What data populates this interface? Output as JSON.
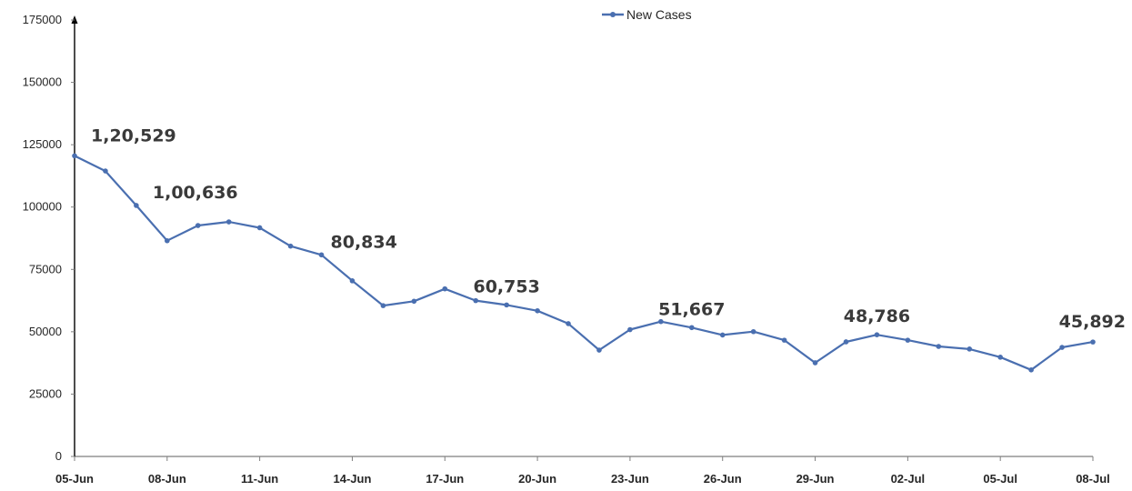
{
  "chart_data": {
    "type": "line",
    "x": [
      "05-Jun",
      "06-Jun",
      "07-Jun",
      "08-Jun",
      "09-Jun",
      "10-Jun",
      "11-Jun",
      "12-Jun",
      "13-Jun",
      "14-Jun",
      "15-Jun",
      "16-Jun",
      "17-Jun",
      "18-Jun",
      "19-Jun",
      "20-Jun",
      "21-Jun",
      "22-Jun",
      "23-Jun",
      "24-Jun",
      "25-Jun",
      "26-Jun",
      "27-Jun",
      "28-Jun",
      "29-Jun",
      "30-Jun",
      "01-Jul",
      "02-Jul",
      "03-Jul",
      "04-Jul",
      "05-Jul",
      "06-Jul",
      "07-Jul",
      "08-Jul"
    ],
    "x_tick_labels": [
      "05-Jun",
      "08-Jun",
      "11-Jun",
      "14-Jun",
      "17-Jun",
      "20-Jun",
      "23-Jun",
      "26-Jun",
      "29-Jun",
      "02-Jul",
      "05-Jul",
      "08-Jul"
    ],
    "series": [
      {
        "name": "New Cases",
        "color": "#4a6fb0",
        "values": [
          120529,
          114460,
          100636,
          86498,
          92596,
          94052,
          91702,
          84332,
          80834,
          70421,
          60471,
          62224,
          67208,
          62480,
          60753,
          58419,
          53256,
          42640,
          50848,
          54069,
          51667,
          48698,
          50040,
          46617,
          37566,
          45951,
          48786,
          46617,
          44111,
          43071,
          39796,
          34703,
          43733,
          45892
        ]
      }
    ],
    "annotations": [
      {
        "index": 0,
        "text": "1,20,529"
      },
      {
        "index": 2,
        "text": "1,00,636"
      },
      {
        "index": 8,
        "text": "80,834"
      },
      {
        "index": 14,
        "text": "60,753"
      },
      {
        "index": 20,
        "text": "51,667"
      },
      {
        "index": 26,
        "text": "48,786"
      },
      {
        "index": 33,
        "text": "45,892"
      }
    ],
    "y_ticks": [
      0,
      25000,
      50000,
      75000,
      100000,
      125000,
      150000,
      175000
    ],
    "ylim": [
      0,
      175000
    ],
    "title": "",
    "xlabel": "",
    "ylabel": "",
    "grid": false,
    "legend": "top-center"
  }
}
